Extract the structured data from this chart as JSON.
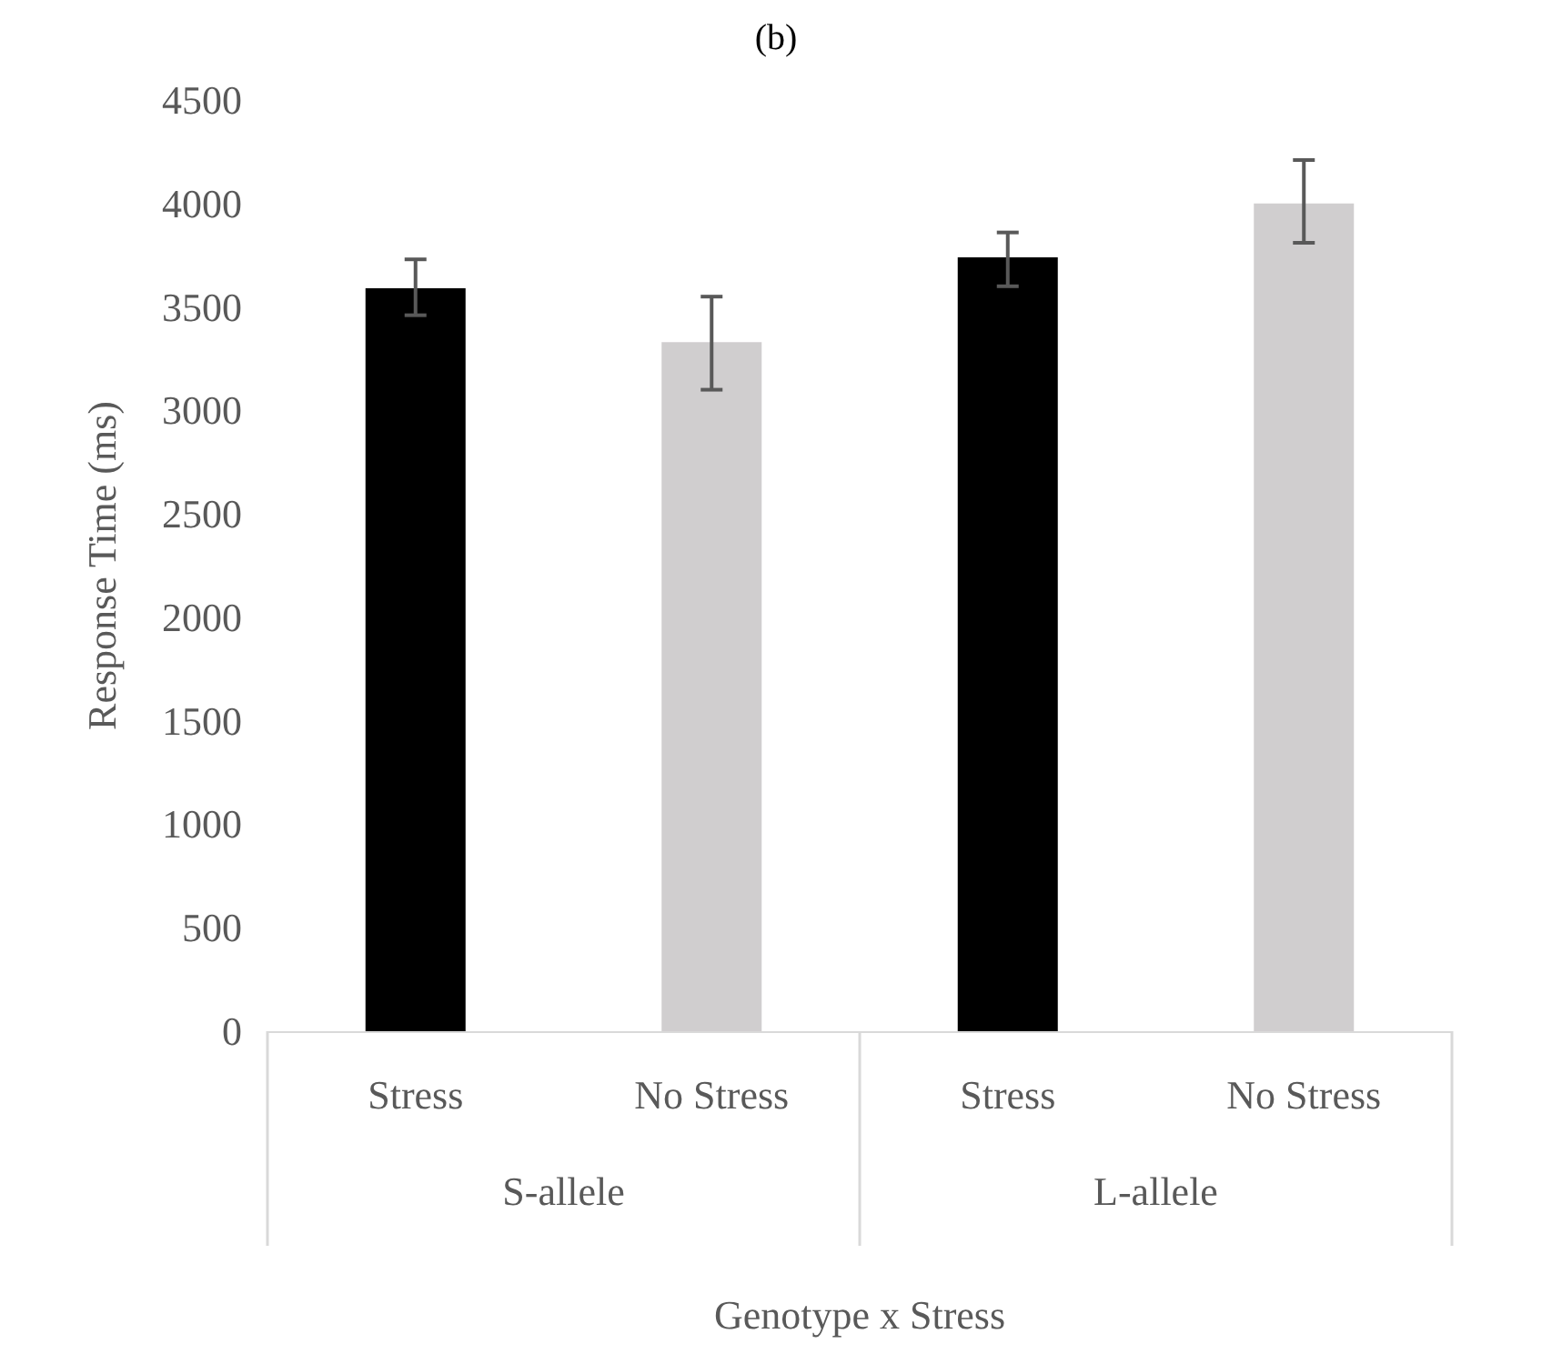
{
  "chart_data": {
    "type": "bar",
    "title": "(b)",
    "xlabel": "Genotype x Stress",
    "ylabel": "Response Time (ms)",
    "categories": [
      "Stress",
      "No Stress",
      "Stress",
      "No Stress"
    ],
    "values": [
      3590,
      3330,
      3740,
      4000
    ],
    "colors": [
      "#000000",
      "#d0cecf",
      "#000000",
      "#d0cecf"
    ],
    "errors": [
      [
        3460,
        3730
      ],
      [
        3100,
        3550
      ],
      [
        3600,
        3860
      ],
      [
        3810,
        4210
      ]
    ],
    "annotations": [
      "S-allele",
      "L-allele"
    ],
    "ylim": [
      0,
      4500
    ],
    "yticks": [
      0,
      500,
      1000,
      1500,
      2000,
      2500,
      3000,
      3500,
      4000,
      4500
    ],
    "grid": false
  }
}
